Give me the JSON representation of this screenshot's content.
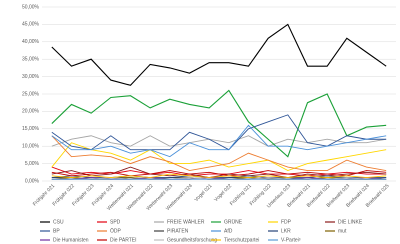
{
  "chart_data": {
    "type": "line",
    "categories": [
      "Frühjahr 021",
      "Frühjahr 022",
      "Frühjahr 023",
      "Frühjahr 024",
      "Wetterwahl 021",
      "Wetterwahl 022",
      "Wetterwahl 023",
      "Wetterwahl 024",
      "Vogel 021",
      "Vogel 022",
      "Frühling 021",
      "Frühling 022",
      "Unterlaus 023",
      "Briefwahl 021",
      "Briefwahl 022",
      "Briefwahl 023",
      "Briefwahl 024",
      "Briefwahl 025"
    ],
    "ylim": [
      0,
      50
    ],
    "yticks": [
      {
        "value": 0,
        "label": "0,00%"
      },
      {
        "value": 5,
        "label": "5,00%"
      },
      {
        "value": 10,
        "label": "10,00%"
      },
      {
        "value": 15,
        "label": "15,00%"
      },
      {
        "value": 20,
        "label": "20,00%"
      },
      {
        "value": 25,
        "label": "25,00%"
      },
      {
        "value": 30,
        "label": "30,00%"
      },
      {
        "value": 35,
        "label": "35,00%"
      },
      {
        "value": 40,
        "label": "40,00%"
      },
      {
        "value": 45,
        "label": "45,00%"
      },
      {
        "value": 50,
        "label": "50,00%"
      }
    ],
    "grid": true,
    "series": [
      {
        "name": "CSU",
        "color": "#000000",
        "values": [
          38.5,
          33,
          35,
          29,
          27.5,
          33.5,
          32.5,
          31,
          34,
          34,
          33,
          41,
          45,
          33,
          33,
          41,
          37,
          33
        ]
      },
      {
        "name": "SPD",
        "color": "#e3000f",
        "values": [
          4,
          2,
          2.5,
          2,
          3,
          2,
          2.5,
          1.5,
          2,
          2,
          3,
          2,
          2,
          1.5,
          2,
          2.5,
          2,
          2
        ]
      },
      {
        "name": "FREIE WÄHLER",
        "color": "#a6a6a6",
        "values": [
          10,
          12,
          13,
          11,
          10,
          13,
          10,
          11,
          12,
          11,
          13,
          10,
          12,
          11,
          12,
          11,
          11,
          12
        ]
      },
      {
        "name": "GRÜNE",
        "color": "#1aa037",
        "values": [
          16.5,
          22,
          19.5,
          24,
          24.5,
          21,
          23.5,
          22,
          21,
          26,
          17,
          12,
          7,
          22.5,
          25,
          13,
          15.5,
          16
        ]
      },
      {
        "name": "FDP",
        "color": "#ffd600",
        "values": [
          4,
          11,
          9,
          8,
          6,
          9,
          5,
          5,
          6,
          4,
          5,
          6,
          3,
          5,
          6,
          7,
          8,
          9
        ]
      },
      {
        "name": "DIE LINKE",
        "color": "#8b1a1a",
        "values": [
          2,
          3,
          1.5,
          2,
          4,
          2,
          1.5,
          2,
          1,
          2,
          1.5,
          2,
          1,
          2,
          1.5,
          2,
          2.5,
          2
        ]
      },
      {
        "name": "BP",
        "color": "#2f5597",
        "values": [
          14,
          10,
          9,
          13,
          9,
          9,
          9,
          14,
          12,
          9,
          15,
          17,
          19,
          11,
          10,
          13,
          12,
          12
        ]
      },
      {
        "name": "ÖDP",
        "color": "#ed7d31",
        "values": [
          13,
          7,
          7.5,
          7,
          5,
          7,
          5.5,
          3,
          4,
          5,
          8,
          6,
          4,
          3,
          3,
          6,
          4,
          3
        ]
      },
      {
        "name": "PIRATEN",
        "color": "#404040",
        "values": [
          1,
          1,
          0.5,
          1,
          1,
          0.5,
          1,
          1,
          0.5,
          1,
          1,
          0.5,
          1,
          0.5,
          1,
          1,
          0.5,
          1
        ]
      },
      {
        "name": "AfD",
        "color": "#4a90d9",
        "values": [
          13,
          9,
          9,
          10,
          8,
          9,
          7,
          11,
          9,
          9,
          16,
          10,
          10,
          9,
          10,
          11,
          12,
          13
        ]
      },
      {
        "name": "LKR",
        "color": "#264478",
        "values": [
          1,
          1.5,
          1,
          1,
          1.5,
          1,
          1,
          1.5,
          1,
          1,
          1.5,
          1,
          1,
          1,
          1.5,
          1,
          1,
          1
        ]
      },
      {
        "name": "mut",
        "color": "#7f6000",
        "values": [
          0.5,
          1,
          0.5,
          0.5,
          1,
          0.5,
          0.5,
          1,
          0.5,
          0.5,
          1,
          0.5,
          0.5,
          0.5,
          1,
          0.5,
          0.5,
          0.5
        ]
      },
      {
        "name": "Die Humanisten",
        "color": "#7030a0",
        "values": [
          0.5,
          0.5,
          1,
          0.5,
          0.5,
          1,
          0.5,
          0.5,
          1,
          0.5,
          0.5,
          1,
          0.5,
          1,
          0.5,
          0.5,
          1,
          0.5
        ]
      },
      {
        "name": "Die PARTEI",
        "color": "#c00000",
        "values": [
          2.5,
          1.5,
          2,
          2.5,
          1.5,
          2,
          3,
          2,
          2.5,
          1.5,
          2,
          3,
          2,
          2.5,
          2,
          1.5,
          3,
          2.5
        ]
      },
      {
        "name": "Gesundheitsforschung",
        "color": "#bfbfbf",
        "values": [
          0.5,
          0.5,
          0.5,
          1,
          0.5,
          0.5,
          0.5,
          1,
          0.5,
          0.5,
          0.5,
          1,
          0.5,
          0.5,
          0.5,
          1,
          0.5,
          0.5
        ]
      },
      {
        "name": "Tierschutzpartei",
        "color": "#ffc000",
        "values": [
          1.5,
          1,
          1.5,
          1,
          1.5,
          1,
          2,
          1.5,
          1,
          1.5,
          1,
          1.5,
          1,
          1.5,
          1,
          1.5,
          1,
          1.5
        ]
      },
      {
        "name": "V-Partei³",
        "color": "#5b9bd5",
        "values": [
          0.5,
          0.5,
          0.5,
          0.5,
          0.5,
          0.5,
          0.5,
          0.5,
          0.5,
          0.5,
          0.5,
          0.5,
          0.5,
          0.5,
          0.5,
          0.5,
          0.5,
          0.5
        ]
      }
    ]
  }
}
